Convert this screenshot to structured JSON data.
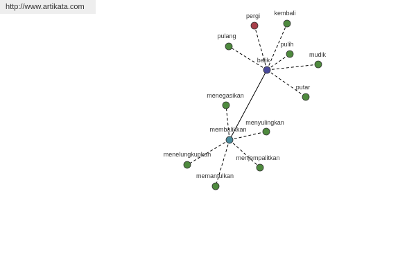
{
  "header": {
    "url": "http://www.artikata.com"
  },
  "nodes": [
    {
      "label": "balik",
      "color": "#4a4a9c"
    },
    {
      "label": "pergi",
      "color": "#a8404a"
    },
    {
      "label": "kembali",
      "color": "#4e8a3e"
    },
    {
      "label": "pulang",
      "color": "#4e8a3e"
    },
    {
      "label": "pulih",
      "color": "#4e8a3e"
    },
    {
      "label": "mudik",
      "color": "#4e8a3e"
    },
    {
      "label": "putar",
      "color": "#4e8a3e"
    },
    {
      "label": "membalikkan",
      "color": "#4a8a9a"
    },
    {
      "label": "menegasikan",
      "color": "#4e8a3e"
    },
    {
      "label": "menyulingkan",
      "color": "#4e8a3e"
    },
    {
      "label": "menelungkupkan",
      "color": "#4e8a3e"
    },
    {
      "label": "menjempalitkan",
      "color": "#4e8a3e"
    },
    {
      "label": "memantulkan",
      "color": "#4e8a3e"
    }
  ]
}
